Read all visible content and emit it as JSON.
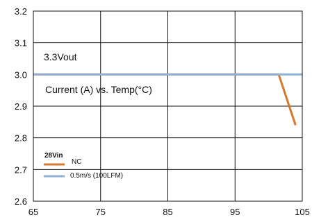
{
  "chart_data": {
    "type": "line",
    "title": "",
    "xlabel": "",
    "ylabel": "",
    "xlim": [
      65,
      105
    ],
    "ylim": [
      2.6,
      3.2
    ],
    "x_ticks": [
      "65",
      "75",
      "85",
      "95",
      "105"
    ],
    "y_ticks": [
      "2.6",
      "2.7",
      "2.8",
      "2.9",
      "3.0",
      "3.1",
      "3.2"
    ],
    "grid": true,
    "annotations": [
      "3.3Vout",
      "Current (A) vs. Temp(°C)"
    ],
    "legend": {
      "title": "28Vin",
      "placement": "bottom-left"
    },
    "series": [
      {
        "name": "NC",
        "color": "#d9772c",
        "x": [
          65,
          101.5,
          104
        ],
        "y": [
          3.0,
          3.0,
          2.84
        ]
      },
      {
        "name": "0.5m/s (100LFM)",
        "color": "#8fb0d2",
        "x": [
          65,
          105
        ],
        "y": [
          3.0,
          3.0
        ]
      }
    ]
  }
}
